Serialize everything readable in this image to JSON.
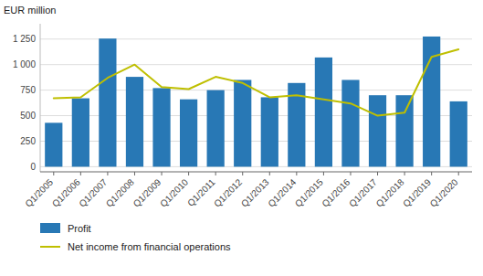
{
  "chart_data": {
    "type": "bar",
    "y_label": "EUR million",
    "categories": [
      "Q1/2005",
      "Q1/2006",
      "Q1/2007",
      "Q1/2008",
      "Q1/2009",
      "Q1/2010",
      "Q1/2011",
      "Q1/2012",
      "Q1/2013",
      "Q1/2014",
      "Q1/2015",
      "Q1/2016",
      "Q1/2017",
      "Q1/2018",
      "Q1/2019",
      "Q1/2020"
    ],
    "series": [
      {
        "name": "Profit",
        "type": "bar",
        "color": "#2878B5",
        "values": [
          430,
          670,
          1255,
          880,
          770,
          660,
          750,
          850,
          680,
          820,
          1070,
          850,
          700,
          700,
          1275,
          640
        ]
      },
      {
        "name": "Net income from financial operations",
        "type": "line",
        "color": "#BFBF00",
        "values": [
          670,
          680,
          870,
          1000,
          780,
          760,
          880,
          820,
          680,
          700,
          660,
          620,
          500,
          530,
          1075,
          1150
        ]
      }
    ],
    "ylim": [
      -50,
      1400
    ],
    "yticks": [
      0,
      250,
      500,
      750,
      {
        "value": 1000,
        "label": "1 000"
      },
      {
        "value": 1250,
        "label": "1 250"
      }
    ],
    "grid": true,
    "legend": "bottom"
  }
}
